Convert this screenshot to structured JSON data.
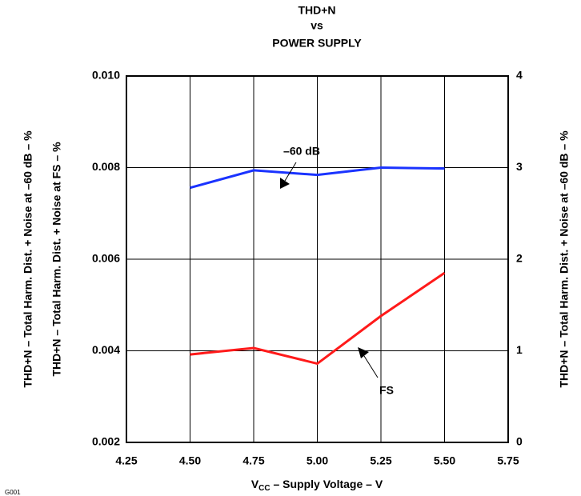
{
  "chart_data": {
    "type": "line",
    "title": [
      "THD+N",
      "vs",
      "POWER SUPPLY"
    ],
    "x_label": {
      "main": "V",
      "sub": "CC",
      "rest": " – Supply Voltage – V"
    },
    "y_labels": [
      "THD+N – Total Harm. Dist. + Noise at –60 dB – %",
      "THD+N – Total Harm. Dist. + Noise at FS – %"
    ],
    "y2_label": "THD+N – Total Harm. Dist. + Noise at –60 dB – %",
    "figure_id": "G001",
    "x": [
      4.5,
      4.75,
      5.0,
      5.25,
      5.5
    ],
    "xlim": [
      4.25,
      5.75
    ],
    "xticks": [
      4.25,
      {
        "value": 4.5,
        "label": "4.50"
      },
      4.75,
      {
        "value": 5.0,
        "label": "5.00"
      },
      5.25,
      {
        "value": 5.5,
        "label": "5.50"
      },
      5.75
    ],
    "ylim": [
      0.002,
      0.01
    ],
    "yticks": [
      0.002,
      0.004,
      0.006,
      0.008,
      {
        "value": 0.01,
        "label": "0.010"
      }
    ],
    "y2lim": [
      0,
      4
    ],
    "y2ticks": [
      0,
      1,
      2,
      3,
      4
    ],
    "grid": true,
    "series": [
      {
        "name": "–60 dB",
        "color": "#1a33ff",
        "axis": "y2",
        "values": [
          2.78,
          2.97,
          2.92,
          3.0,
          2.99
        ]
      },
      {
        "name": "FS",
        "color": "#ff1a1a",
        "axis": "y2",
        "values": [
          0.96,
          1.03,
          0.86,
          1.38,
          1.85
        ]
      }
    ]
  }
}
